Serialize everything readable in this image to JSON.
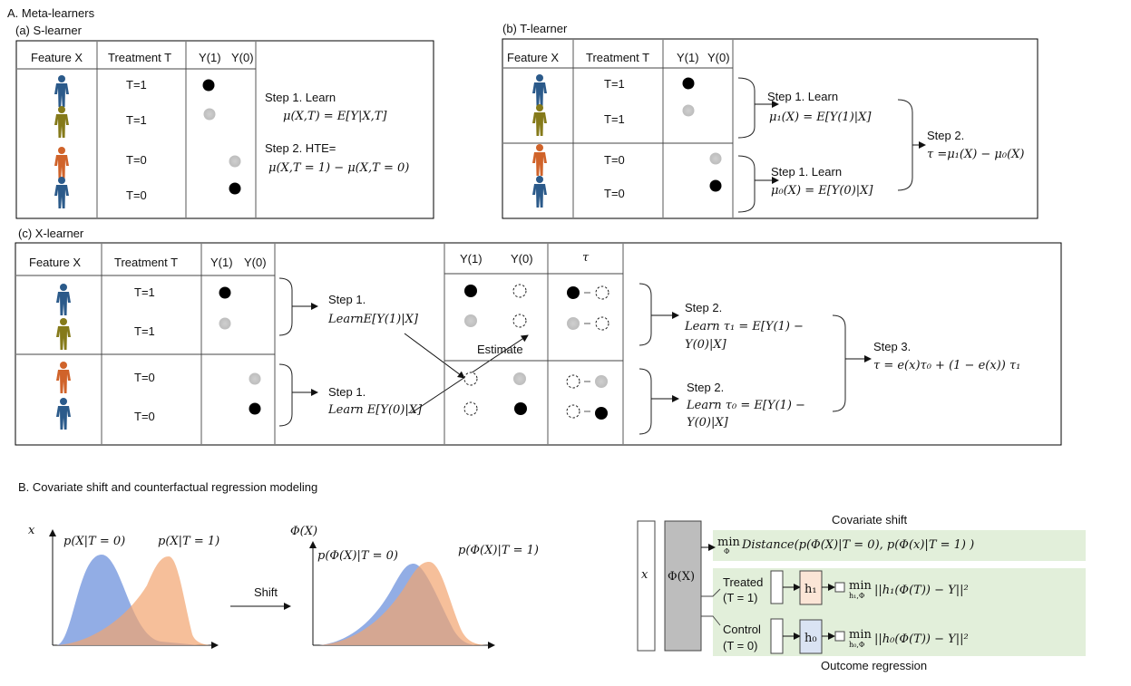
{
  "sectionA": "A. Meta-learners",
  "sectionB": "B. Covariate shift and counterfactual regression modeling",
  "hdr": {
    "feature": "Feature X",
    "treatment": "Treatment T",
    "y1": "Y(1)",
    "y0": "Y(0)",
    "tau": "τ"
  },
  "t1": "T=1",
  "t0": "T=0",
  "s": {
    "label": "(a) S-learner",
    "step1": "Step 1. Learn",
    "step1_eq": "μ(X,T) = E[Y|X,T]",
    "step2": "Step 2. HTE=",
    "step2_eq": "μ(X,T = 1) − μ(X,T = 0)"
  },
  "tl": {
    "label": "(b) T-learner",
    "step1": "Step 1. Learn",
    "eq1": "μ₁(X) = E[Y(1)|X]",
    "eq0": "μ₀(X) = E[Y(0)|X]",
    "step2": "Step 2.",
    "step2_eq": "τ =μ₁(X) − μ₀(X)"
  },
  "x": {
    "label": "(c) X-learner",
    "step1": "Step 1.",
    "learn1": "LearnE[Y(1)|X]",
    "step1b": "Step 1.",
    "learn0": "Learn E[Y(0)|X]",
    "estimate": "Estimate",
    "step2": "Step 2.",
    "learn_t1": "Learn τ₁ = E[Y(1) −",
    "learn_t0": "Learn τ₀ = E[Y(1) −",
    "y0x": "Y(0)|X]",
    "step3": "Step 3.",
    "step3_eq": "τ = e(x)τ₀ + (1 − e(x)) τ₁"
  },
  "b": {
    "axis_x": "x",
    "axis_phi": "Φ(X)",
    "p_x_t0": "p(X|T = 0)",
    "p_x_t1": "p(X|T = 1)",
    "shift": "Shift",
    "p_phi_t0": "p(Φ(X)|T = 0)",
    "p_phi_t1": "p(Φ(X)|T = 1)",
    "input": "x",
    "phi_box": "Φ(X)",
    "cov_title": "Covariate shift",
    "cov_eq": "Distance(p(Φ(X)|T = 0), p(Φ(x)|T = 1) )",
    "min": "min",
    "min_sub": "Φ",
    "treated": "Treated",
    "treated_t": "(T = 1)",
    "control": "Control",
    "control_t": "(T = 0)",
    "h1": "h₁",
    "h0": "h₀",
    "min_h1": "h₁,Φ",
    "min_h0": "h₀,Φ",
    "loss1": "||h₁(Φ(T)) − Y||²",
    "loss0": "||h₀(Φ(T)) − Y||²",
    "outcome_title": "Outcome regression"
  },
  "colors": {
    "blue_person": "#2b5a8a",
    "olive_person": "#857a1a",
    "orange_person": "#d0632a",
    "blue_dist": "#7f9fe0",
    "orange_dist": "#f2a46f",
    "green_panel": "#e2efda",
    "phi_gray": "#bdbdbd",
    "h1_fill": "#fbe5d6",
    "h0_fill": "#dae3f3"
  }
}
